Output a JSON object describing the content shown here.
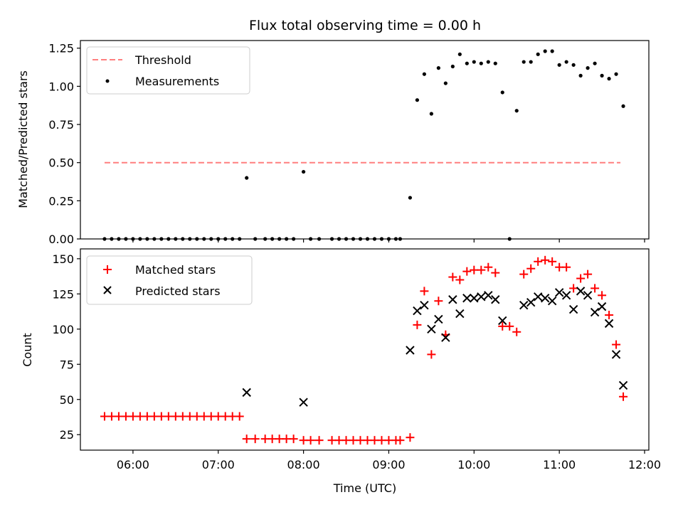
{
  "chart_data": [
    {
      "type": "scatter",
      "title": "Flux total observing time = 0.00 h",
      "xlabel": "",
      "ylabel": "Matched/Predicted stars",
      "ylim": [
        0,
        1.3
      ],
      "yticks": [
        0,
        0.25,
        0.5,
        0.75,
        1.0,
        1.25
      ],
      "ytick_labels": [
        "0.00",
        "0.25",
        "0.50",
        "0.75",
        "1.00",
        "1.25"
      ],
      "legend": {
        "position": "top-left",
        "entries": [
          "Threshold",
          "Measurements"
        ]
      },
      "threshold": {
        "name": "Threshold",
        "value": 0.5,
        "x_start": "05:40",
        "x_end": "11:43",
        "color": "#ff7f7f"
      },
      "series": [
        {
          "name": "Measurements",
          "color": "#000000",
          "marker": "dot",
          "points": [
            [
              "05:40",
              0.0
            ],
            [
              "05:45",
              0.0
            ],
            [
              "05:50",
              0.0
            ],
            [
              "05:55",
              0.0
            ],
            [
              "06:00",
              0.0
            ],
            [
              "06:05",
              0.0
            ],
            [
              "06:10",
              0.0
            ],
            [
              "06:15",
              0.0
            ],
            [
              "06:20",
              0.0
            ],
            [
              "06:25",
              0.0
            ],
            [
              "06:30",
              0.0
            ],
            [
              "06:35",
              0.0
            ],
            [
              "06:40",
              0.0
            ],
            [
              "06:45",
              0.0
            ],
            [
              "06:50",
              0.0
            ],
            [
              "06:55",
              0.0
            ],
            [
              "07:00",
              0.0
            ],
            [
              "07:05",
              0.0
            ],
            [
              "07:10",
              0.0
            ],
            [
              "07:15",
              0.0
            ],
            [
              "07:20",
              0.4
            ],
            [
              "07:26",
              0.0
            ],
            [
              "07:33",
              0.0
            ],
            [
              "07:38",
              0.0
            ],
            [
              "07:43",
              0.0
            ],
            [
              "07:48",
              0.0
            ],
            [
              "07:53",
              0.0
            ],
            [
              "08:00",
              0.44
            ],
            [
              "08:05",
              0.0
            ],
            [
              "08:11",
              0.0
            ],
            [
              "08:20",
              0.0
            ],
            [
              "08:25",
              0.0
            ],
            [
              "08:30",
              0.0
            ],
            [
              "08:35",
              0.0
            ],
            [
              "08:40",
              0.0
            ],
            [
              "08:45",
              0.0
            ],
            [
              "08:50",
              0.0
            ],
            [
              "08:55",
              0.0
            ],
            [
              "09:00",
              0.0
            ],
            [
              "09:05",
              0.0
            ],
            [
              "09:08",
              0.0
            ],
            [
              "09:15",
              0.27
            ],
            [
              "09:20",
              0.91
            ],
            [
              "09:25",
              1.08
            ],
            [
              "09:30",
              0.82
            ],
            [
              "09:35",
              1.12
            ],
            [
              "09:40",
              1.02
            ],
            [
              "09:45",
              1.13
            ],
            [
              "09:50",
              1.21
            ],
            [
              "09:55",
              1.15
            ],
            [
              "10:00",
              1.16
            ],
            [
              "10:05",
              1.15
            ],
            [
              "10:10",
              1.16
            ],
            [
              "10:15",
              1.15
            ],
            [
              "10:20",
              0.96
            ],
            [
              "10:25",
              0.0
            ],
            [
              "10:30",
              0.84
            ],
            [
              "10:35",
              1.16
            ],
            [
              "10:40",
              1.16
            ],
            [
              "10:45",
              1.21
            ],
            [
              "10:50",
              1.23
            ],
            [
              "10:55",
              1.23
            ],
            [
              "11:00",
              1.14
            ],
            [
              "11:05",
              1.16
            ],
            [
              "11:10",
              1.14
            ],
            [
              "11:15",
              1.07
            ],
            [
              "11:20",
              1.12
            ],
            [
              "11:25",
              1.15
            ],
            [
              "11:30",
              1.07
            ],
            [
              "11:35",
              1.05
            ],
            [
              "11:40",
              1.08
            ],
            [
              "11:45",
              0.87
            ]
          ]
        }
      ]
    },
    {
      "type": "scatter",
      "title": "",
      "xlabel": "Time (UTC)",
      "ylabel": "Count",
      "ylim": [
        14,
        157
      ],
      "yticks": [
        25,
        50,
        75,
        100,
        125,
        150
      ],
      "ytick_labels": [
        "25",
        "50",
        "75",
        "100",
        "125",
        "150"
      ],
      "xlim": [
        "05:23",
        "12:03"
      ],
      "xticks": [
        "06:00",
        "07:00",
        "08:00",
        "09:00",
        "10:00",
        "11:00",
        "12:00"
      ],
      "legend": {
        "position": "top-left",
        "entries": [
          "Matched stars",
          "Predicted stars"
        ]
      },
      "series": [
        {
          "name": "Matched stars",
          "color": "#ff0000",
          "marker": "plus",
          "points": [
            [
              "05:40",
              38
            ],
            [
              "05:45",
              38
            ],
            [
              "05:50",
              38
            ],
            [
              "05:55",
              38
            ],
            [
              "06:00",
              38
            ],
            [
              "06:05",
              38
            ],
            [
              "06:10",
              38
            ],
            [
              "06:15",
              38
            ],
            [
              "06:20",
              38
            ],
            [
              "06:25",
              38
            ],
            [
              "06:30",
              38
            ],
            [
              "06:35",
              38
            ],
            [
              "06:40",
              38
            ],
            [
              "06:45",
              38
            ],
            [
              "06:50",
              38
            ],
            [
              "06:55",
              38
            ],
            [
              "07:00",
              38
            ],
            [
              "07:05",
              38
            ],
            [
              "07:10",
              38
            ],
            [
              "07:15",
              38
            ],
            [
              "07:20",
              22
            ],
            [
              "07:26",
              22
            ],
            [
              "07:33",
              22
            ],
            [
              "07:38",
              22
            ],
            [
              "07:43",
              22
            ],
            [
              "07:48",
              22
            ],
            [
              "07:53",
              22
            ],
            [
              "08:00",
              21
            ],
            [
              "08:05",
              21
            ],
            [
              "08:11",
              21
            ],
            [
              "08:20",
              21
            ],
            [
              "08:25",
              21
            ],
            [
              "08:30",
              21
            ],
            [
              "08:35",
              21
            ],
            [
              "08:40",
              21
            ],
            [
              "08:45",
              21
            ],
            [
              "08:50",
              21
            ],
            [
              "08:55",
              21
            ],
            [
              "09:00",
              21
            ],
            [
              "09:05",
              21
            ],
            [
              "09:08",
              21
            ],
            [
              "09:15",
              23
            ],
            [
              "09:20",
              103
            ],
            [
              "09:25",
              127
            ],
            [
              "09:30",
              82
            ],
            [
              "09:35",
              120
            ],
            [
              "09:40",
              96
            ],
            [
              "09:45",
              137
            ],
            [
              "09:50",
              135
            ],
            [
              "09:55",
              141
            ],
            [
              "10:00",
              142
            ],
            [
              "10:05",
              142
            ],
            [
              "10:10",
              144
            ],
            [
              "10:15",
              140
            ],
            [
              "10:20",
              102
            ],
            [
              "10:25",
              102
            ],
            [
              "10:30",
              98
            ],
            [
              "10:35",
              139
            ],
            [
              "10:40",
              143
            ],
            [
              "10:45",
              148
            ],
            [
              "10:50",
              149
            ],
            [
              "10:55",
              148
            ],
            [
              "11:00",
              144
            ],
            [
              "11:05",
              144
            ],
            [
              "11:10",
              129
            ],
            [
              "11:15",
              136
            ],
            [
              "11:20",
              139
            ],
            [
              "11:25",
              129
            ],
            [
              "11:30",
              124
            ],
            [
              "11:35",
              110
            ],
            [
              "11:40",
              89
            ],
            [
              "11:45",
              52
            ]
          ]
        },
        {
          "name": "Predicted stars",
          "color": "#000000",
          "marker": "x",
          "points": [
            [
              "07:20",
              55
            ],
            [
              "08:00",
              48
            ],
            [
              "09:15",
              85
            ],
            [
              "09:20",
              113
            ],
            [
              "09:25",
              117
            ],
            [
              "09:30",
              100
            ],
            [
              "09:35",
              107
            ],
            [
              "09:40",
              94
            ],
            [
              "09:45",
              121
            ],
            [
              "09:50",
              111
            ],
            [
              "09:55",
              122
            ],
            [
              "10:00",
              122
            ],
            [
              "10:05",
              123
            ],
            [
              "10:10",
              124
            ],
            [
              "10:15",
              121
            ],
            [
              "10:20",
              106
            ],
            [
              "10:35",
              117
            ],
            [
              "10:40",
              119
            ],
            [
              "10:45",
              123
            ],
            [
              "10:50",
              122
            ],
            [
              "10:55",
              120
            ],
            [
              "11:00",
              126
            ],
            [
              "11:05",
              124
            ],
            [
              "11:10",
              114
            ],
            [
              "11:15",
              127
            ],
            [
              "11:20",
              124
            ],
            [
              "11:25",
              112
            ],
            [
              "11:30",
              116
            ],
            [
              "11:35",
              104
            ],
            [
              "11:40",
              82
            ],
            [
              "11:45",
              60
            ]
          ]
        }
      ]
    }
  ]
}
